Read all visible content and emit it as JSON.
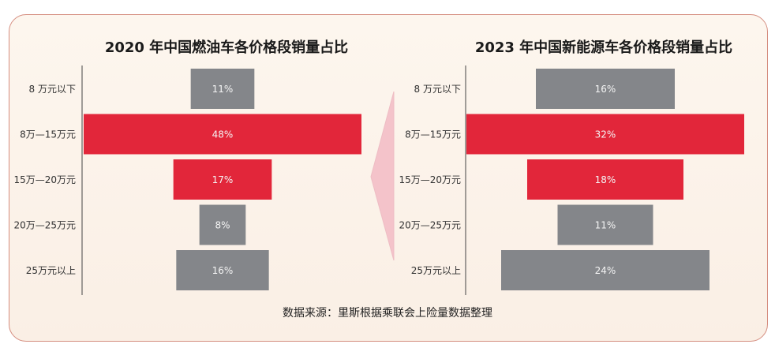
{
  "colors": {
    "highlight": "#e2263a",
    "neutral": "#84868a",
    "bar_text": "#f4f4f4",
    "arrow": "#f4c3ca",
    "card_border": "#d58d7f"
  },
  "source_note": "数据来源：里斯根据乘联会上险量数据整理",
  "chart_data": [
    {
      "type": "bar",
      "orientation": "horizontal-centered",
      "title": "2020 年中国燃油车各价格段销量占比",
      "categories": [
        "8 万元以下",
        "8万—15万元",
        "15万—20万元",
        "20万—25万元",
        "25万元以上"
      ],
      "values": [
        11,
        48,
        17,
        8,
        16
      ],
      "value_labels": [
        "11%",
        "48%",
        "17%",
        "8%",
        "16%"
      ],
      "highlighted": [
        false,
        true,
        true,
        false,
        false
      ],
      "xlim": [
        0,
        48
      ]
    },
    {
      "type": "bar",
      "orientation": "horizontal-centered",
      "title": "2023 年中国新能源车各价格段销量占比",
      "categories": [
        "8 万元以下",
        "8万—15万元",
        "15万—20万元",
        "20万—25万元",
        "25万元以上"
      ],
      "values": [
        16,
        32,
        18,
        11,
        24
      ],
      "value_labels": [
        "16%",
        "32%",
        "18%",
        "11%",
        "24%"
      ],
      "highlighted": [
        false,
        true,
        true,
        false,
        false
      ],
      "xlim": [
        0,
        32
      ]
    }
  ]
}
